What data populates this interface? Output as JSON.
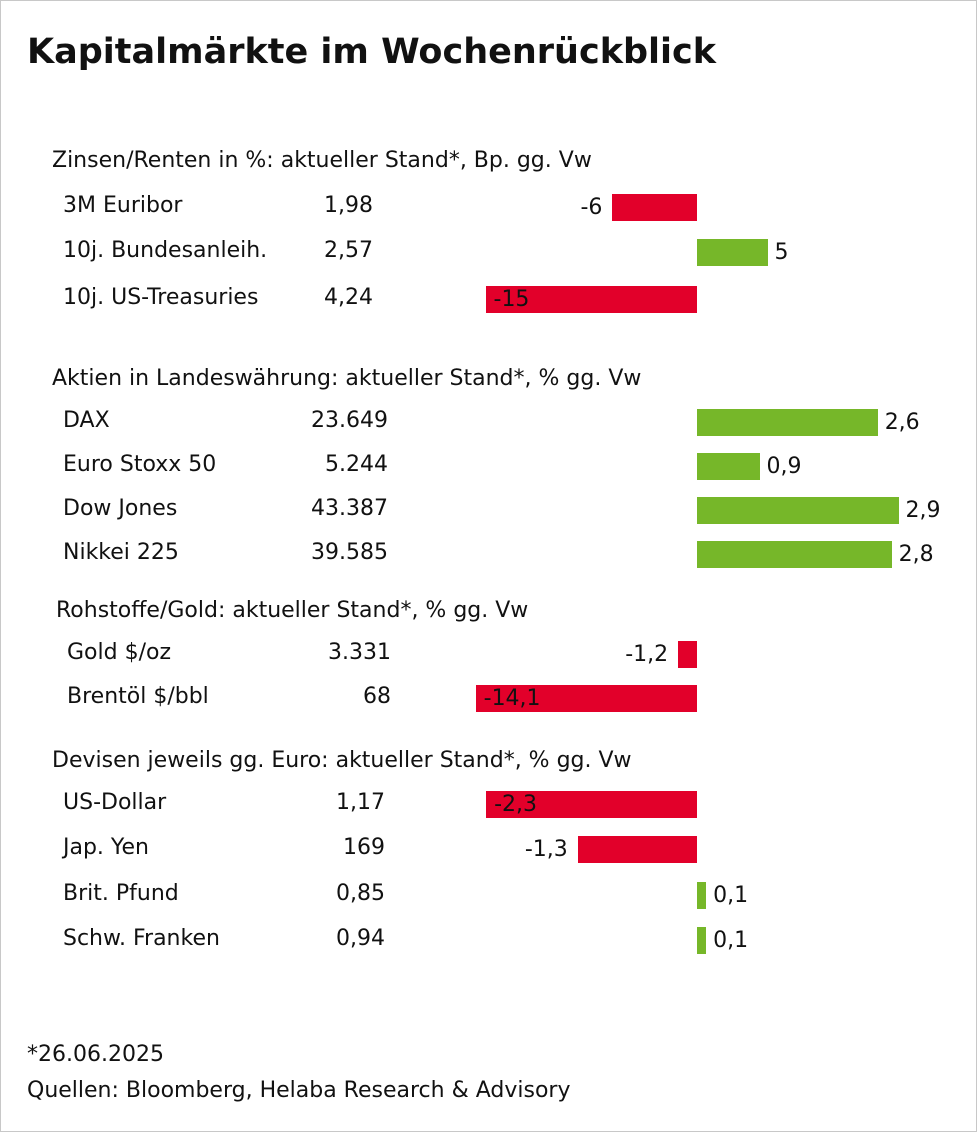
{
  "title": "Kapitalmärkte im Wochenrückblick",
  "footnote": "*26.06.2025",
  "sources": "Quellen: Bloomberg, Helaba Research & Advisory",
  "colors": {
    "positive": "#76b729",
    "negative": "#e2002a",
    "text": "#111111"
  },
  "chart_data": [
    {
      "type": "bar",
      "title": "Zinsen/Renten in %: aktueller Stand*, Bp. gg. Vw",
      "categories": [
        "3M Euribor",
        "10j. Bundesanleih.",
        "10j. US-Treasuries"
      ],
      "levels": [
        "1,98",
        "2,57",
        "4,24"
      ],
      "values": [
        -6,
        5,
        -15
      ],
      "value_labels": [
        "-6",
        "5",
        "-15"
      ]
    },
    {
      "type": "bar",
      "title": "Aktien in Landeswährung: aktueller Stand*, % gg. Vw",
      "categories": [
        "DAX",
        "Euro Stoxx 50",
        "Dow Jones",
        "Nikkei 225"
      ],
      "levels": [
        "23.649",
        "5.244",
        "43.387",
        "39.585"
      ],
      "values": [
        2.6,
        0.9,
        2.9,
        2.8
      ],
      "value_labels": [
        "2,6",
        "0,9",
        "2,9",
        "2,8"
      ]
    },
    {
      "type": "bar",
      "title": "Rohstoffe/Gold: aktueller Stand*, % gg. Vw",
      "categories": [
        "Gold $/oz",
        "Brentöl $/bbl"
      ],
      "levels": [
        "3.331",
        "68"
      ],
      "values": [
        -1.2,
        -14.1
      ],
      "value_labels": [
        "-1,2",
        "-14,1"
      ]
    },
    {
      "type": "bar",
      "title": "Devisen jeweils gg. Euro: aktueller Stand*, % gg. Vw",
      "categories": [
        "US-Dollar",
        "Jap. Yen",
        "Brit. Pfund",
        "Schw. Franken"
      ],
      "levels": [
        "1,17",
        "169",
        "0,85",
        "0,94"
      ],
      "values": [
        -2.3,
        -1.3,
        0.1,
        0.1
      ],
      "value_labels": [
        "-2,3",
        "-1,3",
        "0,1",
        "0,1"
      ]
    }
  ]
}
